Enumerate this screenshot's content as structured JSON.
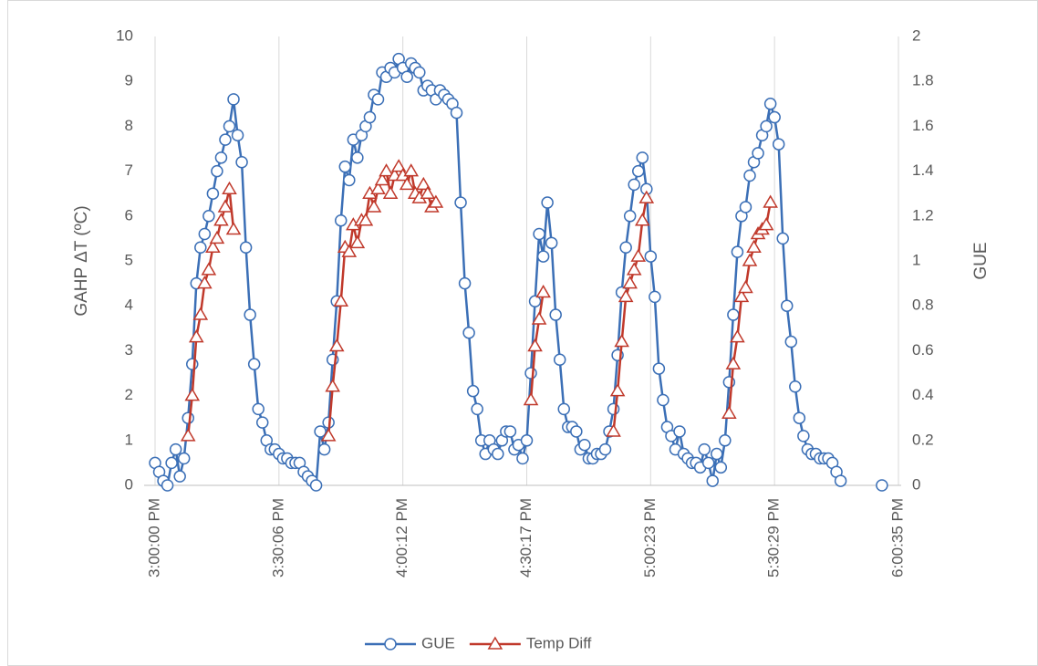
{
  "chart_data": {
    "type": "line",
    "y_label": "GAHP ΔT (ºC)",
    "y2_label": "GUE",
    "ylim": [
      0,
      10
    ],
    "yticks": [
      0,
      1,
      2,
      3,
      4,
      5,
      6,
      7,
      8,
      9,
      10
    ],
    "y2lim": [
      0,
      2
    ],
    "y2ticks": [
      0,
      0.2,
      0.4,
      0.6,
      0.8,
      1,
      1.2,
      1.4,
      1.6,
      1.8,
      2
    ],
    "xgrid": true,
    "legend": "bottom",
    "categories": [
      "3:00:00 PM",
      null,
      null,
      null,
      null,
      null,
      null,
      null,
      null,
      null,
      null,
      null,
      null,
      null,
      null,
      null,
      null,
      null,
      null,
      null,
      null,
      null,
      null,
      null,
      null,
      null,
      null,
      null,
      null,
      null,
      "3:30:06 PM",
      null,
      null,
      null,
      null,
      null,
      null,
      null,
      null,
      null,
      null,
      null,
      null,
      null,
      null,
      null,
      null,
      null,
      null,
      null,
      null,
      null,
      null,
      null,
      null,
      null,
      null,
      null,
      null,
      null,
      "4:00:12 PM",
      null,
      null,
      null,
      null,
      null,
      null,
      null,
      null,
      null,
      null,
      null,
      null,
      null,
      null,
      null,
      null,
      null,
      null,
      null,
      null,
      null,
      null,
      null,
      null,
      null,
      null,
      null,
      null,
      null,
      "4:30:17 PM",
      null,
      null,
      null,
      null,
      null,
      null,
      null,
      null,
      null,
      null,
      null,
      null,
      null,
      null,
      null,
      null,
      null,
      null,
      null,
      null,
      null,
      null,
      null,
      null,
      null,
      null,
      null,
      null,
      null,
      "5:00:23 PM",
      null,
      null,
      null,
      null,
      null,
      null,
      null,
      null,
      null,
      null,
      null,
      null,
      null,
      null,
      null,
      null,
      null,
      null,
      null,
      null,
      null,
      null,
      null,
      null,
      null,
      null,
      null,
      null,
      null,
      "5:30:29 PM",
      null,
      null,
      null,
      null,
      null,
      null,
      null,
      null,
      null,
      null,
      null,
      null,
      null,
      null,
      null,
      null,
      null,
      null,
      null,
      null,
      null,
      null,
      null,
      null,
      null,
      null,
      null,
      null,
      null,
      "6:00:35 PM"
    ],
    "series": [
      {
        "name": "GUE",
        "color": "#3b6fb6",
        "marker": "circle",
        "axis": "y2",
        "values": [
          0.1,
          0.06,
          0.02,
          0,
          0.1,
          0.16,
          0.04,
          0.12,
          0.3,
          0.54,
          0.9,
          1.06,
          1.12,
          1.2,
          1.3,
          1.4,
          1.46,
          1.54,
          1.6,
          1.72,
          1.56,
          1.44,
          1.06,
          0.76,
          0.54,
          0.34,
          0.28,
          0.2,
          0.16,
          0.16,
          0.14,
          0.12,
          0.12,
          0.1,
          0.1,
          0.1,
          0.06,
          0.04,
          0.02,
          0,
          0.24,
          0.16,
          0.28,
          0.56,
          0.82,
          1.18,
          1.42,
          1.36,
          1.54,
          1.46,
          1.56,
          1.6,
          1.64,
          1.74,
          1.72,
          1.84,
          1.82,
          1.86,
          1.84,
          1.9,
          1.86,
          1.82,
          1.88,
          1.86,
          1.84,
          1.76,
          1.78,
          1.76,
          1.72,
          1.76,
          1.74,
          1.72,
          1.7,
          1.66,
          1.26,
          0.9,
          0.68,
          0.42,
          0.34,
          0.2,
          0.14,
          0.2,
          0.16,
          0.14,
          0.2,
          0.24,
          0.24,
          0.16,
          0.18,
          0.12,
          0.2,
          0.5,
          0.82,
          1.12,
          1.02,
          1.26,
          1.08,
          0.76,
          0.56,
          0.34,
          0.26,
          0.26,
          0.24,
          0.16,
          0.18,
          0.12,
          0.12,
          0.14,
          0.14,
          0.16,
          0.24,
          0.34,
          0.58,
          0.86,
          1.06,
          1.2,
          1.34,
          1.4,
          1.46,
          1.32,
          1.02,
          0.84,
          0.52,
          0.38,
          0.26,
          0.22,
          0.16,
          0.24,
          0.14,
          0.12,
          0.1,
          0.1,
          0.08,
          0.16,
          0.1,
          0.02,
          0.14,
          0.08,
          0.2,
          0.46,
          0.76,
          1.04,
          1.2,
          1.24,
          1.38,
          1.44,
          1.48,
          1.56,
          1.6,
          1.7,
          1.64,
          1.52,
          1.1,
          0.8,
          0.64,
          0.44,
          0.3,
          0.22,
          0.16,
          0.14,
          0.14,
          0.12,
          0.12,
          0.12,
          0.1,
          0.06,
          0.02,
          null,
          null,
          null,
          null,
          null,
          null,
          null,
          null,
          null,
          0,
          null,
          null,
          null,
          null
        ]
      },
      {
        "name": "Temp Diff",
        "color": "#c0392b",
        "marker": "triangle",
        "values": [
          null,
          null,
          null,
          null,
          null,
          null,
          null,
          null,
          1.1,
          2.0,
          3.3,
          3.8,
          4.5,
          4.8,
          5.3,
          5.5,
          5.9,
          6.2,
          6.6,
          5.7,
          null,
          null,
          null,
          null,
          null,
          null,
          null,
          null,
          null,
          null,
          null,
          null,
          null,
          null,
          null,
          null,
          null,
          null,
          null,
          null,
          null,
          null,
          1.1,
          2.2,
          3.1,
          4.1,
          5.3,
          5.2,
          5.8,
          5.4,
          5.9,
          5.9,
          6.5,
          6.2,
          6.6,
          6.8,
          7.0,
          6.5,
          6.9,
          7.1,
          6.9,
          6.7,
          7.0,
          6.5,
          6.4,
          6.7,
          6.5,
          6.2,
          6.3,
          null,
          null,
          null,
          null,
          null,
          null,
          null,
          null,
          null,
          null,
          null,
          null,
          null,
          null,
          null,
          null,
          null,
          null,
          null,
          null,
          null,
          null,
          1.9,
          3.1,
          3.7,
          4.3,
          null,
          null,
          null,
          null,
          null,
          null,
          null,
          null,
          null,
          null,
          null,
          null,
          null,
          null,
          null,
          null,
          1.2,
          2.1,
          3.2,
          4.2,
          4.5,
          4.8,
          5.1,
          5.9,
          6.4,
          null,
          null,
          null,
          null,
          null,
          null,
          null,
          null,
          null,
          null,
          null,
          null,
          null,
          null,
          null,
          null,
          null,
          null,
          null,
          1.6,
          2.7,
          3.3,
          4.2,
          4.4,
          5.0,
          5.3,
          5.6,
          5.7,
          5.8,
          6.3,
          null,
          null,
          null,
          null,
          null,
          null,
          null,
          null,
          null,
          null,
          null,
          null,
          null,
          null,
          null,
          null,
          null,
          null,
          null,
          null,
          null,
          null,
          null,
          null,
          null,
          null,
          null,
          null,
          null,
          null,
          null
        ]
      }
    ]
  }
}
